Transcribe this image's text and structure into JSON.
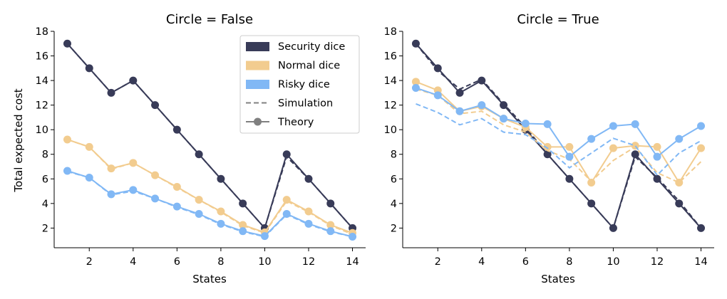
{
  "chart_data": [
    {
      "type": "line",
      "title": "Circle = False",
      "xlabel": "States",
      "ylabel": "Total expected cost",
      "x": [
        1,
        2,
        3,
        4,
        5,
        6,
        7,
        8,
        9,
        10,
        11,
        12,
        13,
        14
      ],
      "xticks": [
        2,
        4,
        6,
        8,
        10,
        12,
        14
      ],
      "yticks": [
        2,
        4,
        6,
        8,
        10,
        12,
        14,
        16,
        18
      ],
      "xlim": [
        0.4,
        14.6
      ],
      "ylim": [
        0.4,
        18
      ],
      "legend": true,
      "series": [
        {
          "name": "Security dice",
          "color": "#383b58",
          "theory": [
            17,
            15,
            13,
            14,
            12,
            10,
            8,
            6,
            4,
            2,
            8,
            6,
            4,
            2
          ],
          "simulation": [
            17,
            15,
            13,
            14,
            12,
            10,
            8,
            6,
            4,
            2,
            7.8,
            6,
            4,
            2
          ]
        },
        {
          "name": "Normal dice",
          "color": "#f2cc8f",
          "theory": [
            9.2,
            8.6,
            6.85,
            7.3,
            6.3,
            5.35,
            4.3,
            3.35,
            2.25,
            1.65,
            4.3,
            3.35,
            2.25,
            1.6
          ],
          "simulation": [
            9.2,
            8.6,
            6.8,
            7.3,
            6.3,
            5.3,
            4.3,
            3.3,
            2.2,
            1.6,
            4.2,
            3.3,
            2.2,
            1.5
          ]
        },
        {
          "name": "Risky dice",
          "color": "#81b8f5",
          "theory": [
            6.65,
            6.1,
            4.75,
            5.1,
            4.4,
            3.75,
            3.15,
            2.35,
            1.75,
            1.35,
            3.15,
            2.35,
            1.75,
            1.3
          ],
          "simulation": [
            6.6,
            6.1,
            4.7,
            5.0,
            4.4,
            3.7,
            3.1,
            2.3,
            1.7,
            1.3,
            3.1,
            2.3,
            1.7,
            1.3
          ]
        }
      ],
      "legend_entries": [
        {
          "label": "Security dice",
          "kind": "patch",
          "color": "#383b58"
        },
        {
          "label": "Normal dice",
          "kind": "patch",
          "color": "#f2cc8f"
        },
        {
          "label": "Risky dice",
          "kind": "patch",
          "color": "#81b8f5"
        },
        {
          "label": "Simulation",
          "kind": "dashed",
          "color": "#808080"
        },
        {
          "label": "Theory",
          "kind": "marker-line",
          "color": "#808080"
        }
      ]
    },
    {
      "type": "line",
      "title": "Circle = True",
      "xlabel": "States",
      "ylabel": "",
      "x": [
        1,
        2,
        3,
        4,
        5,
        6,
        7,
        8,
        9,
        10,
        11,
        12,
        13,
        14
      ],
      "xticks": [
        2,
        4,
        6,
        8,
        10,
        12,
        14
      ],
      "yticks": [
        2,
        4,
        6,
        8,
        10,
        12,
        14,
        16,
        18
      ],
      "xlim": [
        0.4,
        14.6
      ],
      "ylim": [
        0.4,
        18
      ],
      "legend": false,
      "series": [
        {
          "name": "Security dice",
          "color": "#383b58",
          "theory": [
            17,
            15,
            13,
            14,
            12,
            10,
            8,
            6,
            4,
            2,
            8,
            6,
            4,
            2
          ],
          "simulation": [
            17,
            14.8,
            13.3,
            14.1,
            12.1,
            10.2,
            8,
            6,
            4,
            2,
            7.8,
            6.1,
            4.2,
            2
          ]
        },
        {
          "name": "Normal dice",
          "color": "#f2cc8f",
          "theory": [
            13.9,
            13.2,
            11.5,
            11.9,
            10.9,
            10.2,
            8.6,
            8.6,
            5.7,
            8.5,
            8.7,
            8.6,
            5.7,
            8.5
          ],
          "simulation": [
            13.3,
            12.8,
            11.3,
            11.5,
            10.4,
            9.8,
            8.3,
            7.6,
            5.8,
            7.5,
            8.6,
            6.5,
            5.7,
            7.4
          ]
        },
        {
          "name": "Risky dice",
          "color": "#81b8f5",
          "theory": [
            13.4,
            12.8,
            11.5,
            12.0,
            10.9,
            10.5,
            10.45,
            7.8,
            9.25,
            10.3,
            10.45,
            7.8,
            9.25,
            10.3
          ],
          "simulation": [
            12.1,
            11.4,
            10.4,
            10.9,
            9.8,
            9.6,
            8.5,
            6.9,
            8.1,
            9.3,
            8.7,
            6.3,
            8.1,
            9.1
          ]
        }
      ]
    }
  ]
}
